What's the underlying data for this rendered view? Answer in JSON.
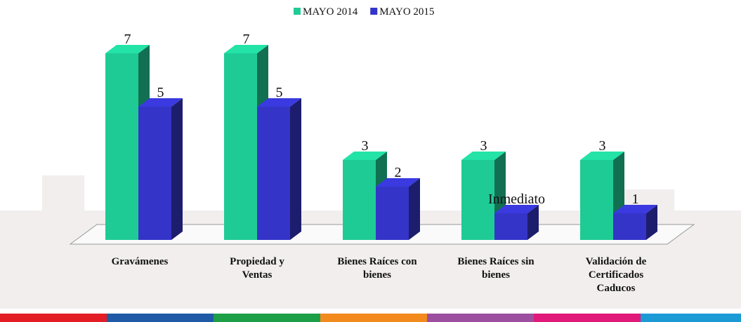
{
  "chart_data": {
    "type": "bar",
    "categories": [
      "Gravámenes",
      "Propiedad y Ventas",
      "Bienes Raíces con bienes",
      "Bienes Raíces sin bienes",
      "Validación de Certificados Caducos"
    ],
    "series": [
      {
        "name": "MAYO 2014",
        "color": "#1fcb95",
        "values": [
          7,
          7,
          3,
          3,
          3
        ]
      },
      {
        "name": "MAYO 2015",
        "color": "#3434c8",
        "values": [
          5,
          5,
          2,
          1,
          1
        ],
        "value_labels": [
          "5",
          "5",
          "2",
          "Inmediato",
          "1"
        ]
      }
    ],
    "legend": "top"
  }
}
